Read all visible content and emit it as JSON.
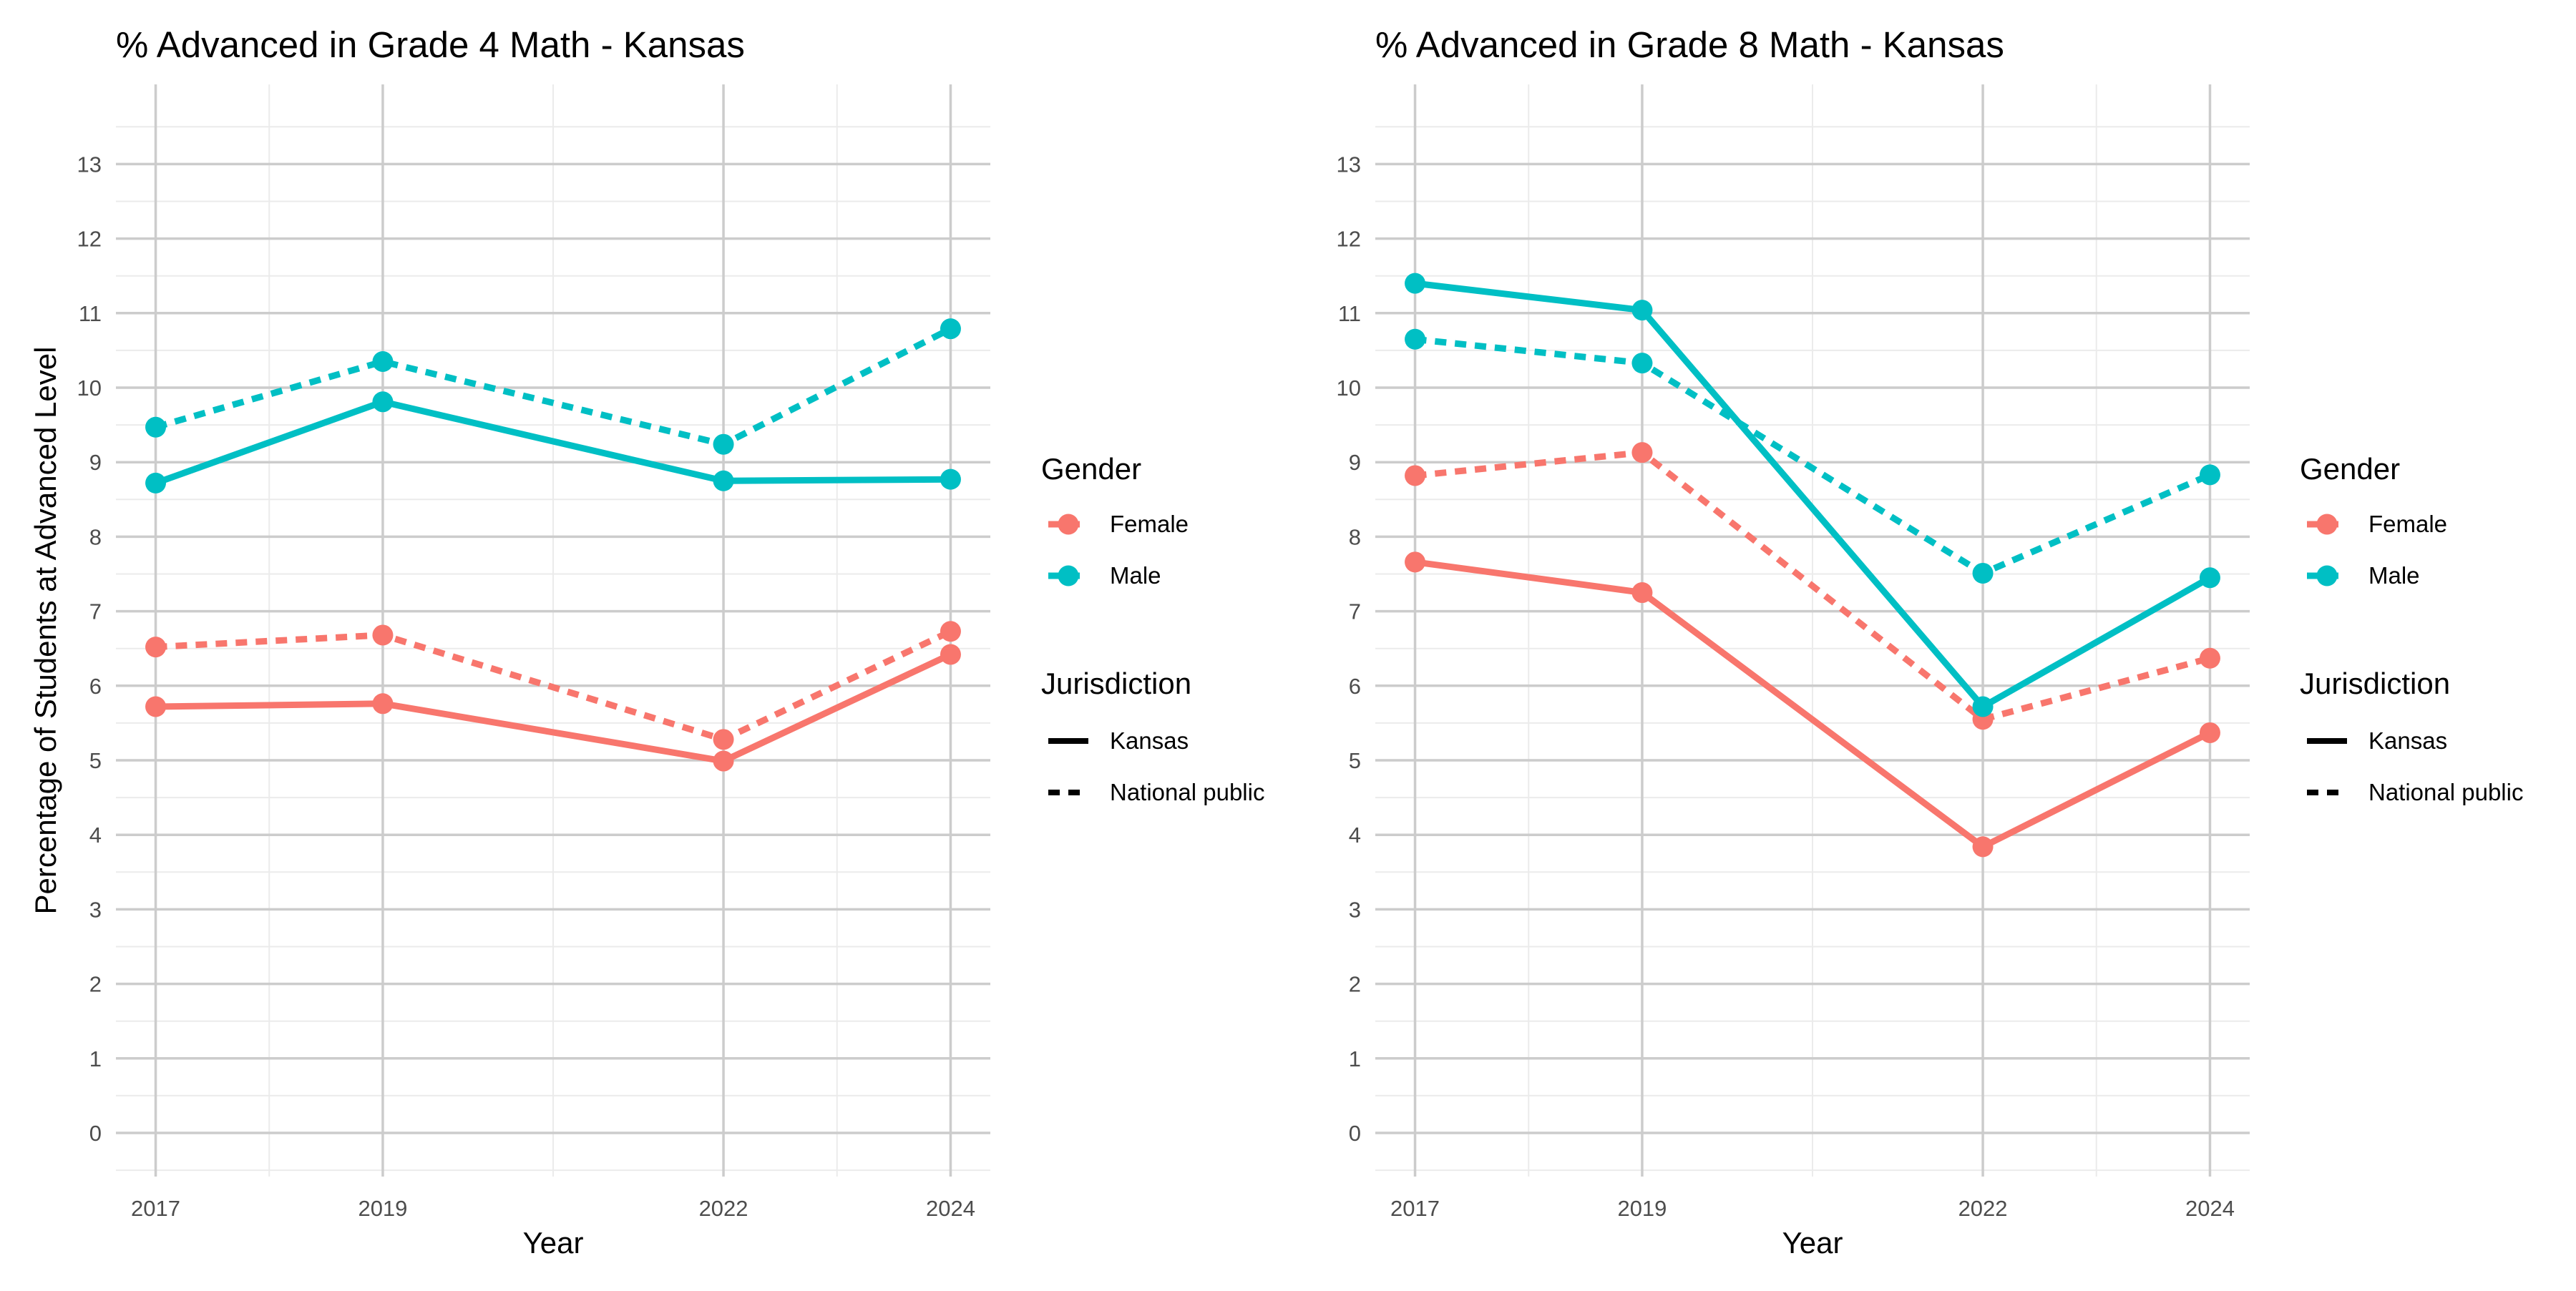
{
  "chart_data": [
    {
      "type": "line",
      "title": "% Advanced in Grade 4 Math - Kansas",
      "xlabel": "Year",
      "ylabel": "Percentage of Students at Advanced Level",
      "x": [
        2017,
        2019,
        2022,
        2024
      ],
      "ylim": [
        -0.5,
        14
      ],
      "yticks": [
        0,
        1,
        2,
        3,
        4,
        5,
        6,
        7,
        8,
        9,
        10,
        11,
        12,
        13
      ],
      "grid": true,
      "series": [
        {
          "gender": "Female",
          "jurisdiction": "Kansas",
          "color": "#F8766D",
          "dash": "solid",
          "values": [
            5.72,
            5.76,
            4.99,
            6.42
          ]
        },
        {
          "gender": "Female",
          "jurisdiction": "National public",
          "color": "#F8766D",
          "dash": "dashed",
          "values": [
            6.52,
            6.68,
            5.28,
            6.73
          ]
        },
        {
          "gender": "Male",
          "jurisdiction": "Kansas",
          "color": "#00BFC4",
          "dash": "solid",
          "values": [
            8.72,
            9.81,
            8.75,
            8.77
          ]
        },
        {
          "gender": "Male",
          "jurisdiction": "National public",
          "color": "#00BFC4",
          "dash": "dashed",
          "values": [
            9.47,
            10.35,
            9.24,
            10.79
          ]
        }
      ],
      "legend": {
        "placement": "right",
        "gender_title": "Gender",
        "gender_items": [
          {
            "label": "Female",
            "color": "#F8766D"
          },
          {
            "label": "Male",
            "color": "#00BFC4"
          }
        ],
        "jurisdiction_title": "Jurisdiction",
        "jurisdiction_items": [
          {
            "label": "Kansas",
            "dash": "solid"
          },
          {
            "label": "National public",
            "dash": "dashed"
          }
        ]
      }
    },
    {
      "type": "line",
      "title": "% Advanced in Grade 8 Math - Kansas",
      "xlabel": "Year",
      "ylabel": "",
      "x": [
        2017,
        2019,
        2022,
        2024
      ],
      "ylim": [
        -0.5,
        14
      ],
      "yticks": [
        0,
        1,
        2,
        3,
        4,
        5,
        6,
        7,
        8,
        9,
        10,
        11,
        12,
        13
      ],
      "grid": true,
      "series": [
        {
          "gender": "Female",
          "jurisdiction": "Kansas",
          "color": "#F8766D",
          "dash": "solid",
          "values": [
            7.66,
            7.25,
            3.84,
            5.37
          ]
        },
        {
          "gender": "Female",
          "jurisdiction": "National public",
          "color": "#F8766D",
          "dash": "dashed",
          "values": [
            8.82,
            9.13,
            5.55,
            6.37
          ]
        },
        {
          "gender": "Male",
          "jurisdiction": "Kansas",
          "color": "#00BFC4",
          "dash": "solid",
          "values": [
            11.4,
            11.04,
            5.72,
            7.45
          ]
        },
        {
          "gender": "Male",
          "jurisdiction": "National public",
          "color": "#00BFC4",
          "dash": "dashed",
          "values": [
            10.65,
            10.33,
            7.51,
            8.83
          ]
        }
      ],
      "legend": {
        "placement": "right",
        "gender_title": "Gender",
        "gender_items": [
          {
            "label": "Female",
            "color": "#F8766D"
          },
          {
            "label": "Male",
            "color": "#00BFC4"
          }
        ],
        "jurisdiction_title": "Jurisdiction",
        "jurisdiction_items": [
          {
            "label": "Kansas",
            "dash": "solid"
          },
          {
            "label": "National public",
            "dash": "dashed"
          }
        ]
      }
    }
  ]
}
